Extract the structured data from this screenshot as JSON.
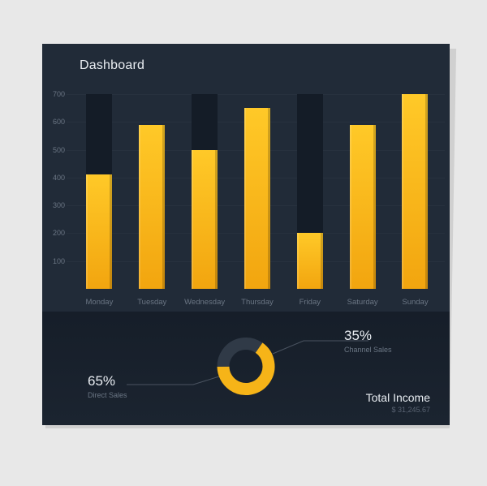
{
  "title": "Dashboard",
  "bar_chart": {
    "type": "bar",
    "y_max": 700,
    "y_ticks": [
      100,
      200,
      300,
      400,
      500,
      600,
      700
    ],
    "categories": [
      "Monday",
      "Tuesday",
      "Wednesday",
      "Thursday",
      "Friday",
      "Saturday",
      "Sunday"
    ],
    "bg_values": [
      700,
      590,
      700,
      650,
      700,
      590,
      700
    ],
    "fg_values": [
      410,
      590,
      500,
      650,
      200,
      590,
      700
    ],
    "bar_fg_gradient": [
      "#ffc928",
      "#f2a50f"
    ],
    "bar_bg_color": "#141c27",
    "panel_bg": "#212b38",
    "gridline_color": "rgba(255,255,255,0.03)",
    "axis_text_color": "#6b7684",
    "axis_fontsize": 9
  },
  "donut": {
    "type": "donut",
    "slices": [
      {
        "label": "Direct Sales",
        "value": 65,
        "color": "#f6b418"
      },
      {
        "label": "Channel Sales",
        "value": 35,
        "color": "#303a47"
      }
    ],
    "inner_bg": "transparent",
    "stroke_width": 15
  },
  "callout_left_pct": "65%",
  "callout_left_lbl": "Direct Sales",
  "callout_right_pct": "35%",
  "callout_right_lbl": "Channel Sales",
  "total_title": "Total Income",
  "total_value": "$  31,245.67",
  "card_bg": "#1d2733",
  "bottom_bg": "#161e29",
  "page_bg": "#e8e8e8"
}
